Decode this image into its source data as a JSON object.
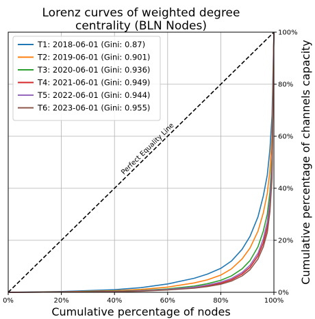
{
  "chart_data": {
    "type": "line",
    "title_line1": "Lorenz curves of weighted degree",
    "title_line2": "centrality (BLN Nodes)",
    "xlabel": "Cumulative percentage of nodes",
    "ylabel": "Cumulative percentage of channels capacity",
    "xlim": [
      0,
      100
    ],
    "ylim": [
      0,
      100
    ],
    "x_ticks": [
      0,
      20,
      40,
      60,
      80,
      100
    ],
    "x_tick_labels": [
      "0%",
      "20%",
      "40%",
      "60%",
      "80%",
      "100%"
    ],
    "y_ticks": [
      0,
      20,
      40,
      60,
      80,
      100
    ],
    "y_tick_labels": [
      "0%",
      "20%",
      "40%",
      "60%",
      "80%",
      "100%"
    ],
    "y_axis_side": "right",
    "grid": true,
    "legend_position": "top-left",
    "annotation": "Perfect Equality Line",
    "equality_line": {
      "x": [
        0,
        100
      ],
      "y": [
        0,
        100
      ],
      "style": "dashed",
      "color": "#000000"
    },
    "series": [
      {
        "name": "T1: 2018-06-01 (Gini: 0.87)",
        "color": "#1f77b4",
        "x": [
          0,
          20,
          40,
          50,
          60,
          70,
          75,
          80,
          84,
          88,
          91,
          94,
          96,
          97.5,
          98.5,
          99.3,
          100
        ],
        "y": [
          0,
          0.3,
          1.0,
          1.8,
          3.2,
          5.4,
          7.0,
          9.2,
          12.0,
          16.5,
          21.5,
          29.0,
          37.0,
          45.0,
          55.0,
          68.0,
          100
        ]
      },
      {
        "name": "T2: 2019-06-01 (Gini: 0.901)",
        "color": "#ff7f0e",
        "x": [
          0,
          20,
          40,
          50,
          60,
          70,
          75,
          80,
          84,
          88,
          91,
          94,
          96,
          97.5,
          98.5,
          99.3,
          100
        ],
        "y": [
          0,
          0.2,
          0.6,
          1.1,
          2.0,
          3.6,
          4.8,
          6.6,
          9.0,
          12.8,
          17.0,
          23.5,
          30.5,
          38.0,
          47.0,
          60.0,
          100
        ]
      },
      {
        "name": "T3: 2020-06-01 (Gini: 0.936)",
        "color": "#2ca02c",
        "x": [
          0,
          20,
          40,
          50,
          60,
          70,
          75,
          80,
          84,
          88,
          91,
          94,
          96,
          97.5,
          98.5,
          99.3,
          100
        ],
        "y": [
          0,
          0.1,
          0.4,
          0.7,
          1.3,
          2.4,
          3.3,
          4.6,
          6.3,
          9.0,
          12.2,
          17.5,
          23.5,
          30.0,
          38.5,
          52.0,
          100
        ]
      },
      {
        "name": "T4: 2021-06-01 (Gini: 0.949)",
        "color": "#d62728",
        "x": [
          0,
          20,
          40,
          50,
          60,
          70,
          75,
          80,
          84,
          88,
          91,
          94,
          96,
          97.5,
          98.5,
          99.3,
          100
        ],
        "y": [
          0,
          0.1,
          0.3,
          0.5,
          1.0,
          1.8,
          2.5,
          3.5,
          4.8,
          7.0,
          9.6,
          14.0,
          19.0,
          25.0,
          33.0,
          47.0,
          100
        ]
      },
      {
        "name": "T5: 2022-06-01 (Gini: 0.944)",
        "color": "#9467bd",
        "x": [
          0,
          20,
          40,
          50,
          60,
          70,
          75,
          80,
          84,
          88,
          91,
          94,
          96,
          97.5,
          98.5,
          99.3,
          100
        ],
        "y": [
          0,
          0.1,
          0.3,
          0.6,
          1.1,
          2.0,
          2.8,
          3.9,
          5.3,
          7.6,
          10.4,
          15.0,
          20.5,
          27.0,
          35.0,
          49.0,
          100
        ]
      },
      {
        "name": "T6: 2023-06-01 (Gini: 0.955)",
        "color": "#8c564b",
        "x": [
          0,
          20,
          40,
          50,
          60,
          70,
          75,
          80,
          84,
          88,
          91,
          94,
          96,
          97.5,
          98.5,
          99.3,
          100
        ],
        "y": [
          0,
          0.1,
          0.25,
          0.45,
          0.9,
          1.6,
          2.2,
          3.1,
          4.3,
          6.3,
          8.7,
          12.8,
          17.5,
          23.0,
          31.0,
          44.0,
          100
        ]
      }
    ]
  }
}
